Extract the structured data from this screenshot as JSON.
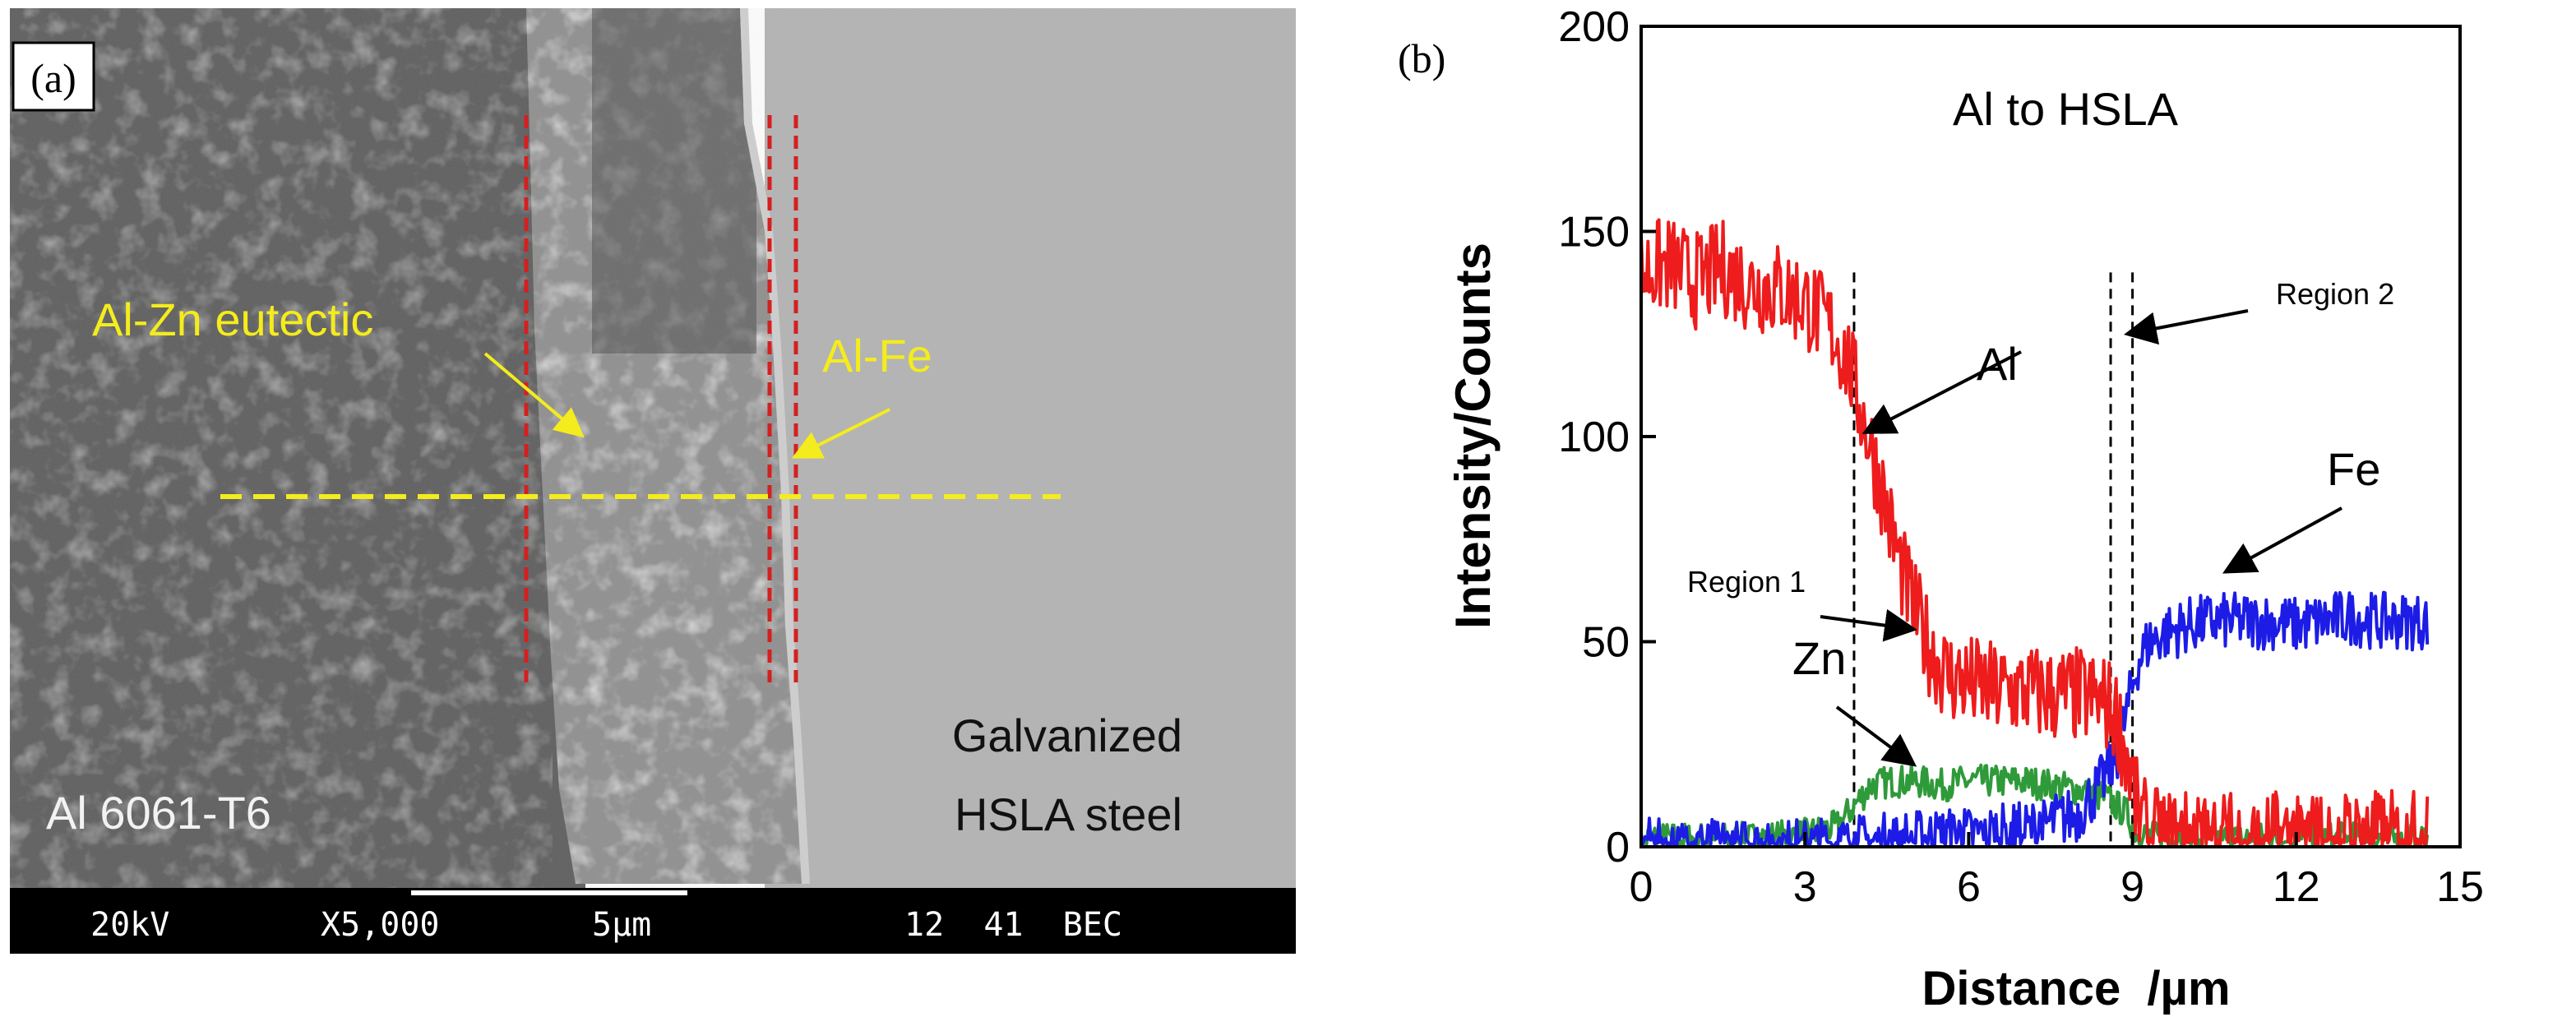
{
  "panel_a": {
    "panel_label": "(a)",
    "annotations": {
      "al_zn_eutectic": "Al-Zn eutectic",
      "al_fe": "Al-Fe",
      "al_alloy": "Al 6061-T6",
      "steel_line1": "Galvanized",
      "steel_line2": "HSLA steel"
    },
    "databar": {
      "voltage": "20kV",
      "magnification": "X5,000",
      "scale": "5µm",
      "info": "12  41  BEC"
    },
    "colors": {
      "annotation": "#f4ec1c",
      "boundary_lines": "#d42020",
      "scan_line": "#f4ec1c",
      "label_text": "#f2f2f2",
      "steel_text": "#111111"
    }
  },
  "chart_data": {
    "type": "line",
    "panel_label": "(b)",
    "title": "Al to HSLA",
    "xlabel": "Distance  /µm",
    "ylabel": "Intensity/Counts",
    "xlim": [
      0,
      15
    ],
    "ylim": [
      0,
      200
    ],
    "x_ticks": [
      0,
      3,
      6,
      9,
      12,
      15
    ],
    "y_ticks": [
      0,
      50,
      100,
      150,
      200
    ],
    "grid": false,
    "series": [
      {
        "name": "Al",
        "color": "#ee1c1c",
        "x": [
          0.0,
          0.5,
          1.0,
          1.5,
          2.0,
          2.5,
          3.0,
          3.5,
          3.8,
          4.0,
          4.2,
          4.4,
          4.6,
          4.8,
          5.0,
          5.3,
          5.6,
          6.0,
          6.5,
          7.0,
          7.5,
          8.0,
          8.5,
          8.7,
          8.9,
          9.1,
          9.3,
          9.6,
          10.0,
          10.5,
          11.0,
          11.5,
          12.0,
          12.5,
          13.0,
          13.5,
          14.0,
          14.4
        ],
        "y": [
          140,
          142,
          138,
          141,
          137,
          136,
          133,
          126,
          118,
          108,
          98,
          88,
          76,
          66,
          58,
          48,
          42,
          40,
          38,
          38,
          37,
          37,
          35,
          32,
          22,
          8,
          3,
          2,
          2,
          2,
          2,
          2,
          2,
          2,
          2,
          2,
          2,
          2
        ],
        "noise": 12
      },
      {
        "name": "Zn",
        "color": "#2f9a3a",
        "x": [
          0.0,
          1.0,
          2.0,
          3.0,
          3.6,
          3.9,
          4.2,
          4.6,
          5.0,
          5.5,
          6.0,
          6.5,
          7.0,
          7.5,
          8.0,
          8.5,
          8.9,
          9.1,
          9.5,
          10.0,
          11.0,
          12.0,
          13.0,
          14.0,
          14.4
        ],
        "y": [
          2,
          2,
          2,
          3,
          5,
          10,
          15,
          16,
          16,
          15,
          16,
          16,
          16,
          15,
          14,
          12,
          8,
          3,
          2,
          2,
          2,
          2,
          2,
          2,
          2
        ],
        "noise": 4
      },
      {
        "name": "Fe",
        "color": "#1c1ce6",
        "x": [
          0.0,
          1.0,
          2.0,
          3.0,
          4.0,
          5.0,
          6.0,
          7.0,
          7.5,
          8.0,
          8.4,
          8.7,
          8.9,
          9.1,
          9.3,
          9.6,
          10.0,
          10.5,
          11.0,
          11.5,
          12.0,
          12.5,
          13.0,
          13.5,
          14.0,
          14.4
        ],
        "y": [
          0,
          0,
          0,
          0,
          1,
          2,
          3,
          4,
          6,
          8,
          15,
          22,
          33,
          45,
          50,
          52,
          54,
          55,
          55,
          55,
          54,
          55,
          56,
          55,
          55,
          55
        ],
        "noise": 7
      }
    ],
    "reference_lines_x": [
      3.9,
      8.6,
      9.0
    ],
    "annotations": [
      {
        "text": "Al",
        "points_to": [
          4.1,
          101
        ]
      },
      {
        "text": "Fe",
        "points_to": [
          10.7,
          67
        ]
      },
      {
        "text": "Zn",
        "points_to": [
          5.0,
          20
        ]
      },
      {
        "text": "Region 1",
        "points_to": [
          5.0,
          53
        ]
      },
      {
        "text": "Region 2",
        "points_to": [
          8.9,
          125
        ]
      }
    ]
  }
}
